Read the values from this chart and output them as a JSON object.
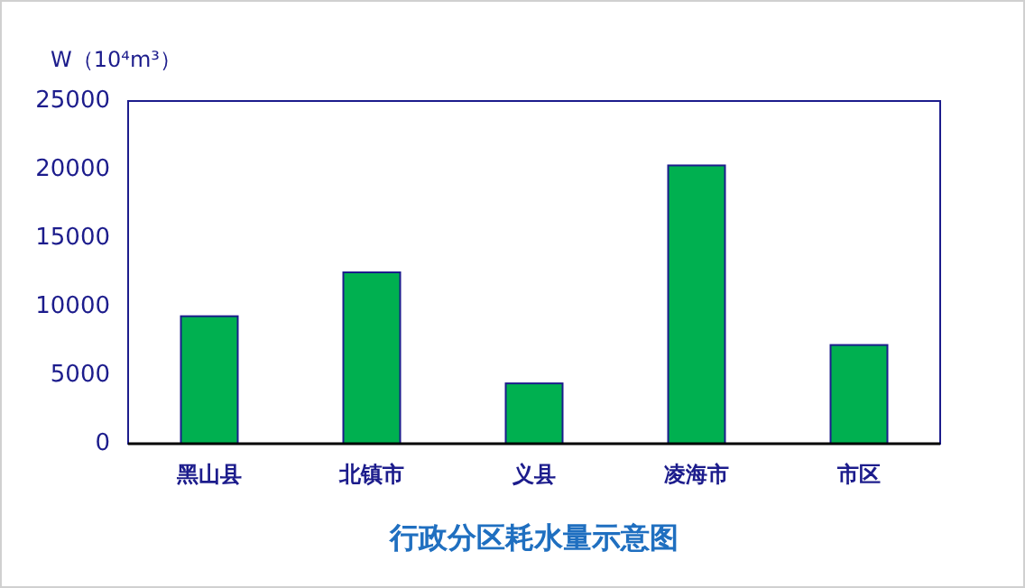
{
  "chart_data": {
    "type": "bar",
    "title": "行政分区耗水量示意图",
    "ylabel": "W（10⁴m³）",
    "categories": [
      "黑山县",
      "北镇市",
      "义县",
      "凌海市",
      "市区"
    ],
    "values": [
      9300,
      12500,
      4400,
      20300,
      7200
    ],
    "color": "#00b050",
    "ylim": [
      0,
      25000
    ],
    "yticks": [
      0,
      5000,
      10000,
      15000,
      20000,
      25000
    ],
    "grid": false
  }
}
